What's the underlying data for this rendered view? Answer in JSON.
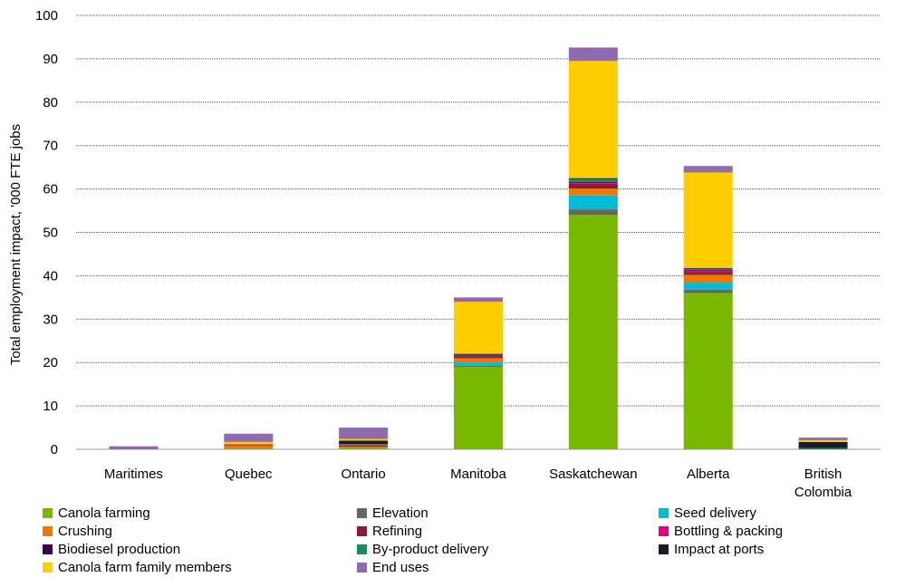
{
  "chart_data": {
    "type": "bar",
    "stacked": true,
    "title": "",
    "xlabel": "",
    "ylabel": "Total employment impact, '000 FTE jobs",
    "ylim": [
      0,
      100
    ],
    "yticks": [
      0,
      10,
      20,
      30,
      40,
      50,
      60,
      70,
      80,
      90,
      100
    ],
    "grid": "horizontal dotted",
    "legend_position": "bottom",
    "categories": [
      [
        "Maritimes"
      ],
      [
        "Quebec"
      ],
      [
        "Ontario"
      ],
      [
        "Manitoba"
      ],
      [
        "Saskatchewan"
      ],
      [
        "Alberta"
      ],
      [
        "British",
        "Colombia"
      ]
    ],
    "series": [
      {
        "name": "Canola farming",
        "color": "#7ab800",
        "values": [
          0,
          0.2,
          0.3,
          19,
          54,
          36,
          0
        ]
      },
      {
        "name": "Elevation",
        "color": "#666666",
        "values": [
          0,
          0,
          0,
          0.2,
          1.3,
          0.8,
          0
        ]
      },
      {
        "name": "Seed delivery",
        "color": "#00bcd4",
        "values": [
          0,
          0,
          0,
          0.8,
          3.2,
          1.6,
          0
        ]
      },
      {
        "name": "Crushing",
        "color": "#f07800",
        "values": [
          0,
          0.7,
          0.3,
          1.0,
          1.6,
          1.8,
          0
        ]
      },
      {
        "name": "Refining",
        "color": "#8b1a3c",
        "values": [
          0,
          0.2,
          0.3,
          0.3,
          1.1,
          0.7,
          0
        ]
      },
      {
        "name": "Bottling & packing",
        "color": "#e6007e",
        "values": [
          0,
          0.1,
          0.1,
          0.2,
          0.2,
          0.3,
          0
        ]
      },
      {
        "name": "Biodiesel production",
        "color": "#3d0055",
        "values": [
          0,
          0,
          0,
          0.1,
          0.2,
          0.2,
          0
        ]
      },
      {
        "name": "By-product delivery",
        "color": "#1a8a5a",
        "values": [
          0,
          0,
          0.2,
          0.2,
          0.7,
          0.2,
          0.3
        ]
      },
      {
        "name": "Impact at ports",
        "color": "#1b1b2e",
        "values": [
          0,
          0,
          0.8,
          0.2,
          0.2,
          0.2,
          1.4
        ]
      },
      {
        "name": "Canola farm family members",
        "color": "#ffcc00",
        "values": [
          0,
          0.5,
          0.4,
          12.0,
          27.0,
          22.0,
          0.4
        ]
      },
      {
        "name": "End uses",
        "color": "#8e6bb0",
        "values": [
          0.7,
          1.9,
          2.6,
          1.0,
          3.1,
          1.5,
          0.6
        ]
      }
    ]
  }
}
